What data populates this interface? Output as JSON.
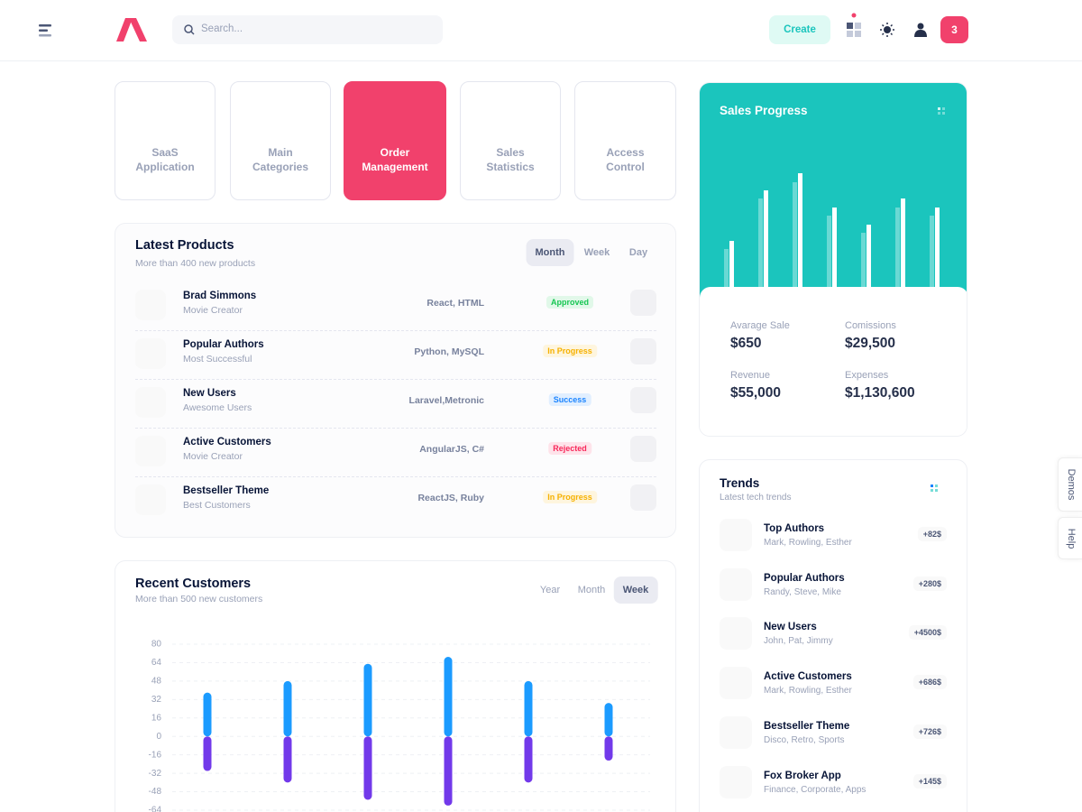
{
  "header": {
    "search_placeholder": "Search...",
    "create_button": "Create",
    "notification_count": "3"
  },
  "tiles": [
    "SaaS Application",
    "Main Categories",
    "Order Management",
    "Sales Statistics",
    "Access Control"
  ],
  "latest_products": {
    "title": "Latest Products",
    "subtitle": "More than 400 new products",
    "tabs": [
      "Month",
      "Week",
      "Day"
    ],
    "rows": [
      {
        "name": "Brad Simmons",
        "role": "Movie Creator",
        "tech": "React, HTML",
        "status": "Approved",
        "status_color": "#17c653"
      },
      {
        "name": "Popular Authors",
        "role": "Most Successful",
        "tech": "Python, MySQL",
        "status": "In Progress",
        "status_color": "#f6b100"
      },
      {
        "name": "New Users",
        "role": "Awesome Users",
        "tech": "Laravel,Metronic",
        "status": "Success",
        "status_color": "#1b84ff"
      },
      {
        "name": "Active Customers",
        "role": "Movie Creator",
        "tech": "AngularJS, C#",
        "status": "Rejected",
        "status_color": "#f8285a"
      },
      {
        "name": "Bestseller Theme",
        "role": "Best Customers",
        "tech": "ReactJS, Ruby",
        "status": "In Progress",
        "status_color": "#f6b100"
      }
    ]
  },
  "sales_progress": {
    "title": "Sales Progress",
    "chart_data": {
      "type": "bar",
      "ylim": [
        0,
        180
      ],
      "series": [
        {
          "color": "rgba(255,255,255,0.35)",
          "values": [
            42,
            98,
            116,
            79,
            60,
            88,
            79
          ]
        },
        {
          "color": "#ffffff",
          "values": [
            51,
            107,
            126,
            88,
            69,
            98,
            88
          ]
        }
      ]
    },
    "stats": [
      {
        "label": "Avarage Sale",
        "value": "$650"
      },
      {
        "label": "Comissions",
        "value": "$29,500"
      },
      {
        "label": "Revenue",
        "value": "$55,000"
      },
      {
        "label": "Expenses",
        "value": "$1,130,600"
      }
    ]
  },
  "recent_customers": {
    "title": "Recent Customers",
    "subtitle": "More than 500 new customers",
    "tabs": [
      "Year",
      "Month",
      "Week"
    ],
    "chart_data": {
      "type": "bar",
      "ylim": [
        -64,
        80
      ],
      "yticks": [
        80,
        64,
        48,
        32,
        16,
        0,
        -16,
        -32,
        -48,
        -64
      ],
      "grid": true,
      "series": [
        {
          "color": "#1b9bff",
          "values": [
            38,
            48,
            63,
            69,
            48,
            29
          ]
        },
        {
          "color": "#7239ea",
          "values": [
            -30,
            -40,
            -55,
            -60,
            -40,
            -21
          ]
        }
      ]
    }
  },
  "trends": {
    "title": "Trends",
    "subtitle": "Latest tech trends",
    "items": [
      {
        "name": "Top Authors",
        "people": "Mark, Rowling, Esther",
        "value": "+82$"
      },
      {
        "name": "Popular Authors",
        "people": "Randy, Steve, Mike",
        "value": "+280$"
      },
      {
        "name": "New Users",
        "people": "John, Pat, Jimmy",
        "value": "+4500$"
      },
      {
        "name": "Active Customers",
        "people": "Mark, Rowling, Esther",
        "value": "+686$"
      },
      {
        "name": "Bestseller Theme",
        "people": "Disco, Retro, Sports",
        "value": "+726$"
      },
      {
        "name": "Fox Broker App",
        "people": "Finance, Corporate, Apps",
        "value": "+145$"
      }
    ]
  },
  "side_tabs": [
    "Demos",
    "Help"
  ]
}
